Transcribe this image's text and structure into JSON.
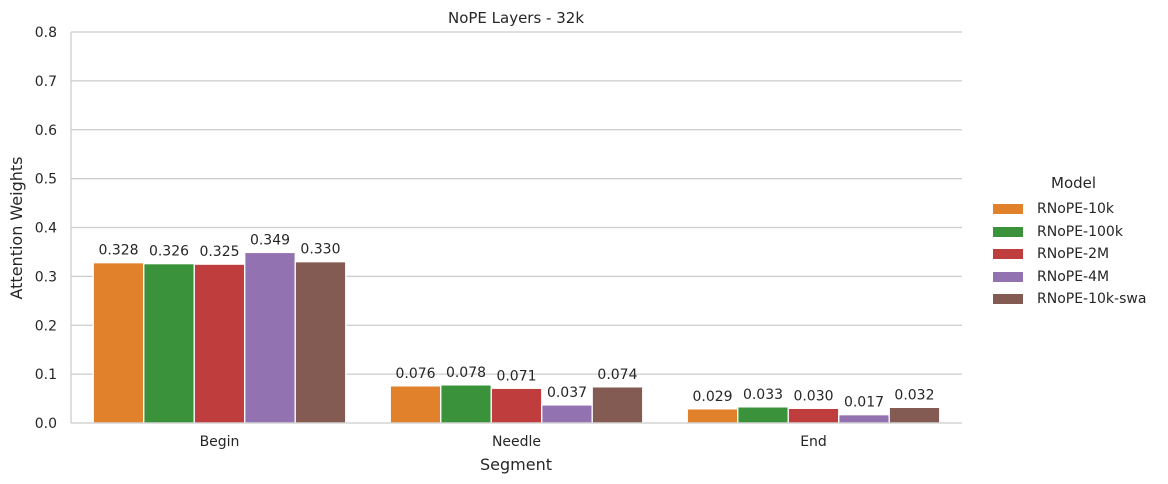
{
  "chart_data": {
    "type": "bar",
    "title": "NoPE Layers - 32k",
    "xlabel": "Segment",
    "ylabel": "Attention Weights",
    "ylim": [
      0,
      0.8
    ],
    "yticks": [
      "0.0",
      "0.1",
      "0.2",
      "0.3",
      "0.4",
      "0.5",
      "0.6",
      "0.7",
      "0.8"
    ],
    "grid": true,
    "legend_position": "right",
    "categories": [
      "Begin",
      "Needle",
      "End"
    ],
    "series": [
      {
        "name": "RNoPE-10k",
        "color": "#e1812c",
        "values": [
          0.328,
          0.076,
          0.029
        ],
        "labels": [
          "0.328",
          "0.076",
          "0.029"
        ]
      },
      {
        "name": "RNoPE-100k",
        "color": "#3a923a",
        "values": [
          0.326,
          0.078,
          0.033
        ],
        "labels": [
          "0.326",
          "0.078",
          "0.033"
        ]
      },
      {
        "name": "RNoPE-2M",
        "color": "#c03d3e",
        "values": [
          0.325,
          0.071,
          0.03
        ],
        "labels": [
          "0.325",
          "0.071",
          "0.030"
        ]
      },
      {
        "name": "RNoPE-4M",
        "color": "#9372b2",
        "values": [
          0.349,
          0.037,
          0.017
        ],
        "labels": [
          "0.349",
          "0.037",
          "0.017"
        ]
      },
      {
        "name": "RNoPE-10k-swa",
        "color": "#845b53",
        "values": [
          0.33,
          0.074,
          0.032
        ],
        "labels": [
          "0.330",
          "0.074",
          "0.032"
        ]
      }
    ]
  },
  "legend": {
    "title": "Model"
  }
}
